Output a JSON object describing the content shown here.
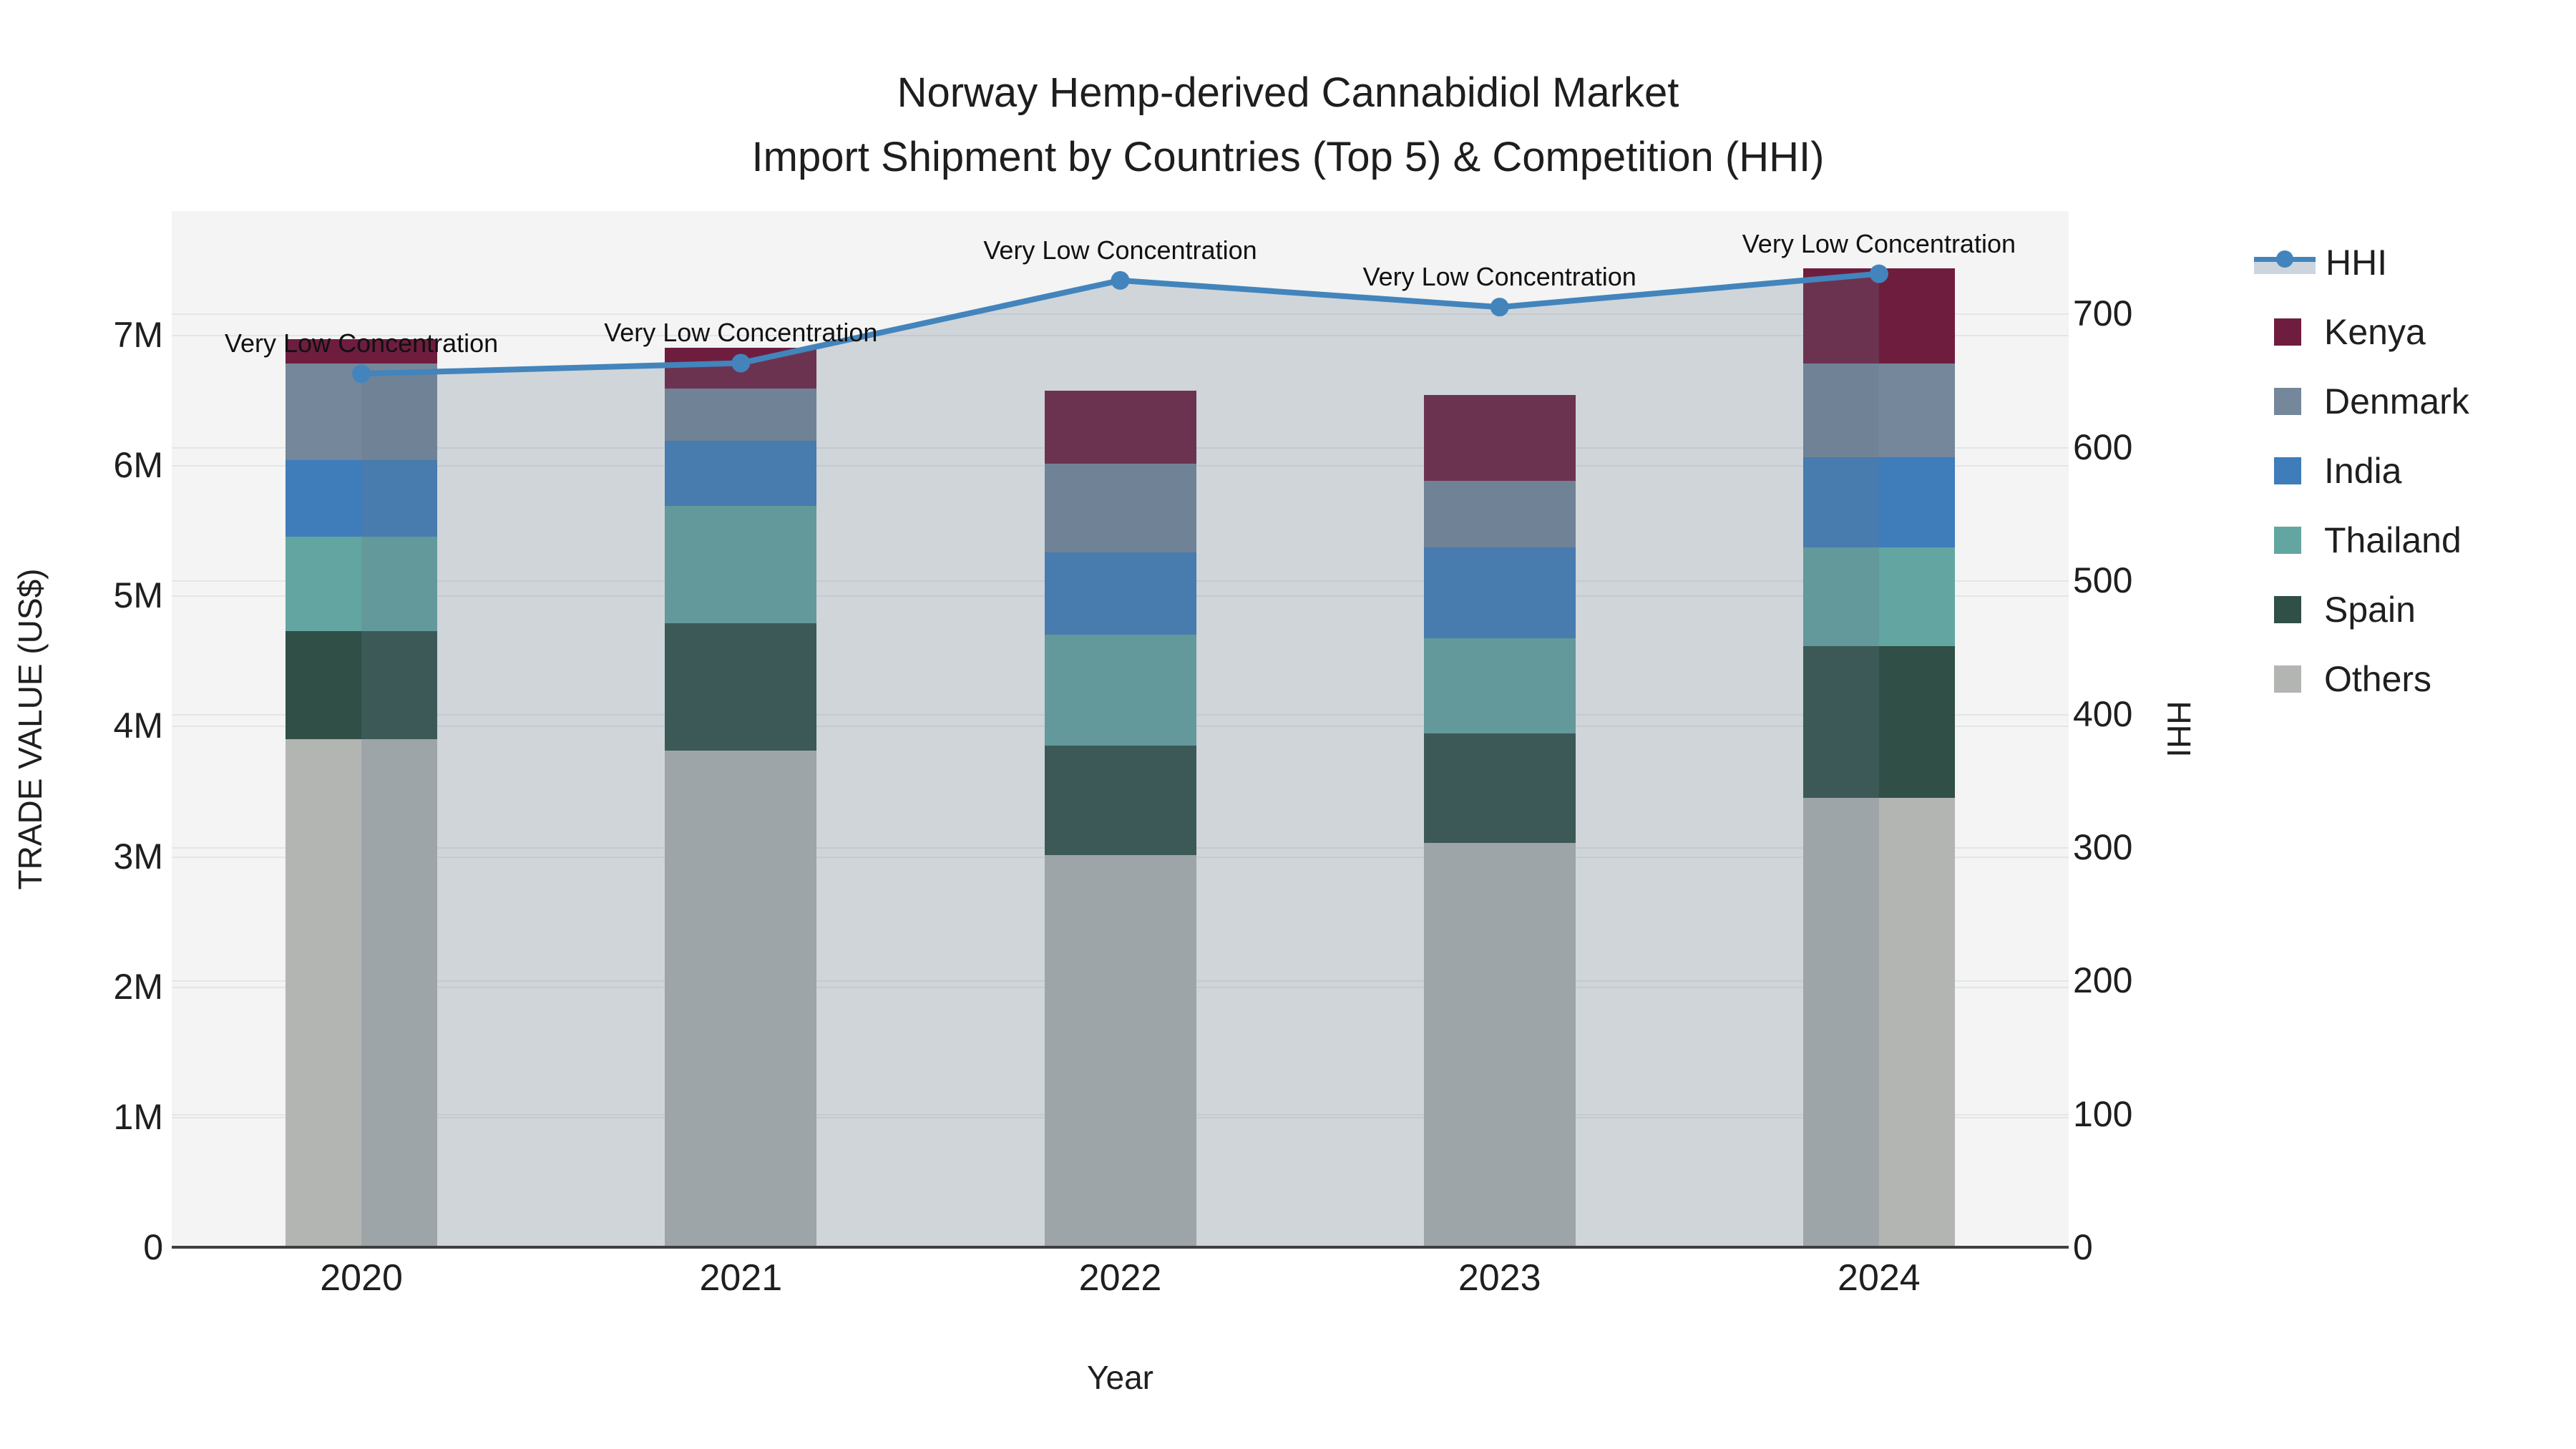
{
  "title": {
    "line1": "Norway Hemp-derived Cannabidiol Market",
    "line2": "Import Shipment by Countries (Top 5) & Competition (HHI)"
  },
  "axes": {
    "x": {
      "title": "Year",
      "categories": [
        "2020",
        "2021",
        "2022",
        "2023",
        "2024"
      ]
    },
    "y_left": {
      "title": "TRADE VALUE (US$)",
      "ticks": [
        {
          "label": "0",
          "value": 0
        },
        {
          "label": "1M",
          "value": 1
        },
        {
          "label": "2M",
          "value": 2
        },
        {
          "label": "3M",
          "value": 3
        },
        {
          "label": "4M",
          "value": 4
        },
        {
          "label": "5M",
          "value": 5
        },
        {
          "label": "6M",
          "value": 6
        },
        {
          "label": "7M",
          "value": 7
        }
      ]
    },
    "y_right": {
      "title": "HHI",
      "ticks": [
        {
          "label": "0",
          "value": 0
        },
        {
          "label": "100",
          "value": 100
        },
        {
          "label": "200",
          "value": 200
        },
        {
          "label": "300",
          "value": 300
        },
        {
          "label": "400",
          "value": 400
        },
        {
          "label": "500",
          "value": 500
        },
        {
          "label": "600",
          "value": 600
        },
        {
          "label": "700",
          "value": 700
        }
      ]
    }
  },
  "legend": {
    "items": [
      {
        "label": "HHI",
        "type": "line",
        "color": "#4384bc"
      },
      {
        "label": "Kenya",
        "type": "square",
        "color": "#6f1d3e"
      },
      {
        "label": "Denmark",
        "type": "square",
        "color": "#75879a"
      },
      {
        "label": "India",
        "type": "square",
        "color": "#3f7cba"
      },
      {
        "label": "Thailand",
        "type": "square",
        "color": "#63a5a1"
      },
      {
        "label": "Spain",
        "type": "square",
        "color": "#2f4f47"
      },
      {
        "label": "Others",
        "type": "square",
        "color": "#b2b5b2"
      }
    ]
  },
  "colors": {
    "hhi_line": "#4384bc",
    "hhi_area_fill": "rgba(100,120,140,0.25)",
    "legend_band": "#cdd4dd",
    "plot_background": "#f3f4f3",
    "gridline": "#e4e6e6",
    "zeroline": "#3f3f3f"
  },
  "chart_data": {
    "type": "bar+line",
    "title": "Norway Hemp-derived Cannabidiol Market — Import Shipment by Countries (Top 5) & Competition (HHI)",
    "xlabel": "Year",
    "ylabel": "TRADE VALUE (US$)",
    "ylabel_right": "HHI",
    "categories": [
      "2020",
      "2021",
      "2022",
      "2023",
      "2024"
    ],
    "values_unit": "millions of US$",
    "stack_order_bottom_to_top": [
      "Others",
      "Spain",
      "Thailand",
      "India",
      "Denmark",
      "Kenya"
    ],
    "series": [
      {
        "name": "Others",
        "color": "#b2b5b2",
        "values": [
          3.9,
          3.81,
          3.01,
          3.1,
          3.45
        ]
      },
      {
        "name": "Spain",
        "color": "#2f4f47",
        "values": [
          0.83,
          0.98,
          0.84,
          0.84,
          1.16
        ]
      },
      {
        "name": "Thailand",
        "color": "#63a5a1",
        "values": [
          0.72,
          0.9,
          0.85,
          0.73,
          0.76
        ]
      },
      {
        "name": "India",
        "color": "#3f7cba",
        "values": [
          0.59,
          0.5,
          0.63,
          0.7,
          0.69
        ]
      },
      {
        "name": "Denmark",
        "color": "#75879a",
        "values": [
          0.74,
          0.4,
          0.68,
          0.51,
          0.72
        ]
      },
      {
        "name": "Kenya",
        "color": "#6f1d3e",
        "values": [
          0.19,
          0.31,
          0.56,
          0.66,
          0.73
        ]
      }
    ],
    "bar_totals": [
      6.97,
      6.9,
      6.57,
      6.54,
      7.51
    ],
    "line_series": {
      "name": "HHI",
      "axis": "right",
      "color": "#4384bc",
      "fill_under_line": "rgba(100,120,140,0.25)",
      "values": [
        655,
        663,
        725,
        705,
        730
      ]
    },
    "annotations": [
      {
        "x": "2020",
        "text": "Very Low Concentration"
      },
      {
        "x": "2021",
        "text": "Very Low Concentration"
      },
      {
        "x": "2022",
        "text": "Very Low Concentration"
      },
      {
        "x": "2023",
        "text": "Very Low Concentration"
      },
      {
        "x": "2024",
        "text": "Very Low Concentration"
      }
    ],
    "ylim_left": [
      0,
      7.95
    ],
    "ylim_right": [
      0,
      777
    ],
    "grid": true,
    "legend_position": "right"
  }
}
